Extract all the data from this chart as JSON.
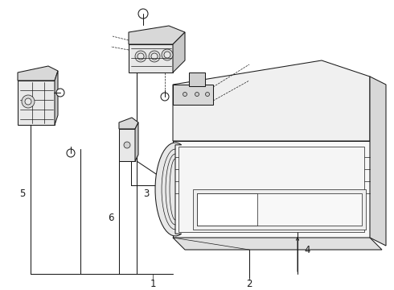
{
  "bg_color": "#ffffff",
  "lc": "#1a1a1a",
  "fig_w": 4.9,
  "fig_h": 3.6,
  "dpi": 100,
  "label_fontsize": 8.5
}
